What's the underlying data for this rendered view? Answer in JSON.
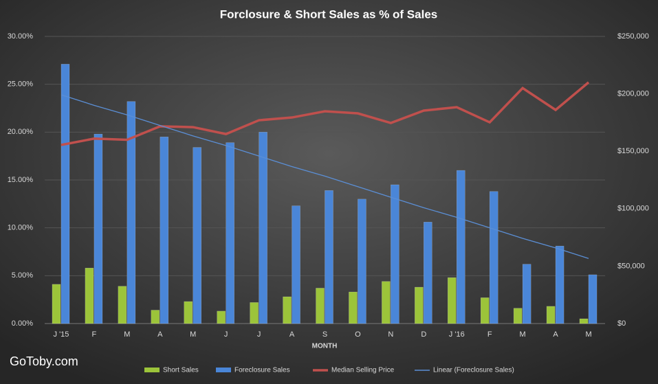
{
  "chart_data": {
    "type": "bar-line",
    "title": "Forclosure  & Short  Sales as % of Sales",
    "x_label": "MONTH",
    "watermark": "GoToby.com",
    "categories": [
      "J '15",
      "F",
      "M",
      "A",
      "M",
      "J",
      "J",
      "A",
      "S",
      "O",
      "N",
      "D",
      "J '16",
      "F",
      "M",
      "A",
      "M"
    ],
    "series": [
      {
        "name": "Short Sales",
        "type": "bar",
        "color": "#9cc43a",
        "values": [
          4.1,
          5.8,
          3.9,
          1.4,
          2.3,
          1.3,
          2.2,
          2.8,
          3.7,
          3.3,
          4.4,
          3.8,
          4.8,
          2.7,
          1.6,
          1.8,
          0.5
        ]
      },
      {
        "name": "Foreclosure Sales",
        "type": "bar",
        "color": "#4a86d8",
        "values": [
          27.1,
          19.8,
          23.2,
          19.5,
          18.4,
          18.9,
          20.0,
          12.3,
          13.9,
          13.0,
          14.5,
          10.6,
          16.0,
          13.8,
          6.2,
          8.1,
          5.1
        ]
      },
      {
        "name": "Median Selling Price",
        "type": "line",
        "axis": "y2",
        "color": "#c0504d",
        "values": [
          155500,
          161000,
          160000,
          171700,
          171000,
          165000,
          177000,
          179400,
          184800,
          183000,
          174600,
          185400,
          188400,
          175200,
          205000,
          186000,
          210000
        ]
      },
      {
        "name": "Linear (Foreclosure Sales)",
        "type": "trend",
        "color": "#5b8fd6",
        "values": [
          23.9,
          22.8,
          21.8,
          20.7,
          19.6,
          18.6,
          17.5,
          16.4,
          15.4,
          14.3,
          13.2,
          12.1,
          11.1,
          10.0,
          8.9,
          7.9,
          6.8
        ]
      }
    ],
    "ylim": [
      0,
      30
    ],
    "yticks": [
      {
        "value": 0,
        "label": "0.00%"
      },
      {
        "value": 5,
        "label": "5.00%"
      },
      {
        "value": 10,
        "label": "10.00%"
      },
      {
        "value": 15,
        "label": "15.00%"
      },
      {
        "value": 20,
        "label": "20.00%"
      },
      {
        "value": 25,
        "label": "25.00%"
      },
      {
        "value": 30,
        "label": "30.00%"
      }
    ],
    "y2lim": [
      0,
      250000
    ],
    "y2ticks": [
      {
        "value": 0,
        "label": "$0"
      },
      {
        "value": 50000,
        "label": "$50,000"
      },
      {
        "value": 100000,
        "label": "$100,000"
      },
      {
        "value": 150000,
        "label": "$150,000"
      },
      {
        "value": 200000,
        "label": "$200,000"
      },
      {
        "value": 250000,
        "label": "$250,000"
      }
    ],
    "grid": true,
    "legend": "bottom"
  }
}
